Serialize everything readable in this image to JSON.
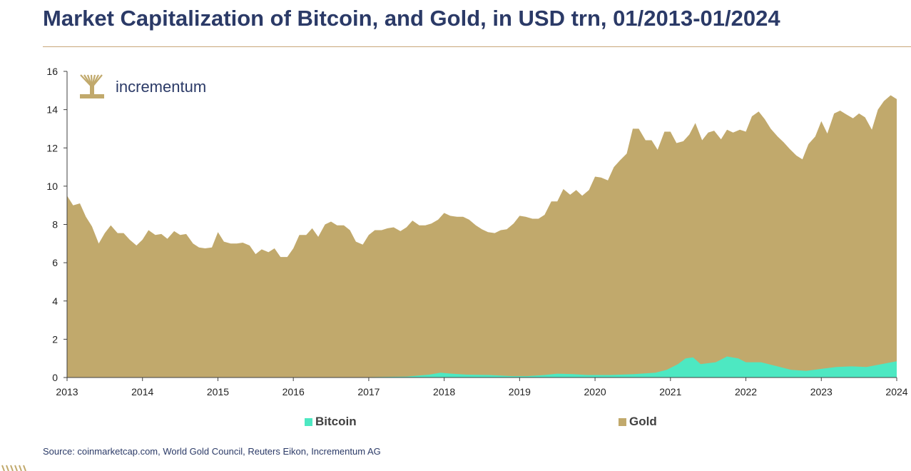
{
  "page": {
    "title": "Market Capitalization of Bitcoin, and Gold, in USD trn, 01/2013-01/2024",
    "brand": "incrementum",
    "source": "Source: coinmarketcap.com, World Gold Council, Reuters Eikon, Incrementum AG"
  },
  "colors": {
    "title": "#2b3a67",
    "rule": "#c8a77a",
    "gold": "#c1a96c",
    "bitcoin": "#4de8c2",
    "axis": "#404040",
    "brand_mark": "#c1a96c"
  },
  "icons": {
    "brand_logo": "incrementum-tree-logo-icon",
    "footer_logo": "incrementum-small-logo-icon"
  },
  "chart_data": {
    "type": "area",
    "stacked": true,
    "title": "Market Capitalization of Bitcoin, and Gold, in USD trn, 01/2013-01/2024",
    "xlabel": "",
    "ylabel": "",
    "x_start": 2013,
    "x_end": 2024,
    "x_ticks": [
      "2013",
      "2014",
      "2015",
      "2016",
      "2017",
      "2018",
      "2019",
      "2020",
      "2021",
      "2022",
      "2023",
      "2024"
    ],
    "ylim": [
      0,
      16
    ],
    "y_ticks": [
      "0",
      "2",
      "4",
      "6",
      "8",
      "10",
      "12",
      "14",
      "16"
    ],
    "grid": false,
    "legend_position": "bottom",
    "legend": [
      "Bitcoin",
      "Gold"
    ],
    "series": [
      {
        "name": "Bitcoin",
        "points": [
          [
            2013.0,
            0.0
          ],
          [
            2013.5,
            0.0
          ],
          [
            2014.0,
            0.01
          ],
          [
            2014.5,
            0.01
          ],
          [
            2015.0,
            0.0
          ],
          [
            2016.0,
            0.0
          ],
          [
            2016.5,
            0.01
          ],
          [
            2017.0,
            0.02
          ],
          [
            2017.5,
            0.05
          ],
          [
            2017.8,
            0.15
          ],
          [
            2017.95,
            0.25
          ],
          [
            2018.1,
            0.2
          ],
          [
            2018.3,
            0.15
          ],
          [
            2018.6,
            0.13
          ],
          [
            2018.9,
            0.07
          ],
          [
            2019.1,
            0.07
          ],
          [
            2019.3,
            0.12
          ],
          [
            2019.5,
            0.2
          ],
          [
            2019.7,
            0.18
          ],
          [
            2019.9,
            0.13
          ],
          [
            2020.2,
            0.13
          ],
          [
            2020.5,
            0.17
          ],
          [
            2020.8,
            0.25
          ],
          [
            2020.95,
            0.4
          ],
          [
            2021.1,
            0.7
          ],
          [
            2021.2,
            1.0
          ],
          [
            2021.3,
            1.05
          ],
          [
            2021.4,
            0.7
          ],
          [
            2021.6,
            0.8
          ],
          [
            2021.75,
            1.1
          ],
          [
            2021.9,
            1.0
          ],
          [
            2022.0,
            0.8
          ],
          [
            2022.2,
            0.8
          ],
          [
            2022.4,
            0.6
          ],
          [
            2022.6,
            0.4
          ],
          [
            2022.8,
            0.35
          ],
          [
            2023.0,
            0.45
          ],
          [
            2023.2,
            0.55
          ],
          [
            2023.4,
            0.58
          ],
          [
            2023.6,
            0.55
          ],
          [
            2023.8,
            0.7
          ],
          [
            2024.0,
            0.85
          ]
        ]
      },
      {
        "name": "Gold",
        "points": [
          [
            2013.0,
            9.5
          ],
          [
            2013.08,
            9.0
          ],
          [
            2013.17,
            9.1
          ],
          [
            2013.25,
            8.4
          ],
          [
            2013.33,
            7.9
          ],
          [
            2013.42,
            7.0
          ],
          [
            2013.5,
            7.55
          ],
          [
            2013.58,
            7.95
          ],
          [
            2013.67,
            7.55
          ],
          [
            2013.75,
            7.55
          ],
          [
            2013.83,
            7.2
          ],
          [
            2013.92,
            6.9
          ],
          [
            2014.0,
            7.2
          ],
          [
            2014.08,
            7.7
          ],
          [
            2014.17,
            7.45
          ],
          [
            2014.25,
            7.5
          ],
          [
            2014.33,
            7.25
          ],
          [
            2014.42,
            7.65
          ],
          [
            2014.5,
            7.45
          ],
          [
            2014.58,
            7.5
          ],
          [
            2014.67,
            7.0
          ],
          [
            2014.75,
            6.8
          ],
          [
            2014.83,
            6.75
          ],
          [
            2014.92,
            6.8
          ],
          [
            2015.0,
            7.6
          ],
          [
            2015.08,
            7.1
          ],
          [
            2015.17,
            7.0
          ],
          [
            2015.25,
            7.0
          ],
          [
            2015.33,
            7.05
          ],
          [
            2015.42,
            6.9
          ],
          [
            2015.5,
            6.45
          ],
          [
            2015.58,
            6.7
          ],
          [
            2015.67,
            6.55
          ],
          [
            2015.75,
            6.75
          ],
          [
            2015.83,
            6.3
          ],
          [
            2015.92,
            6.3
          ],
          [
            2016.0,
            6.75
          ],
          [
            2016.08,
            7.45
          ],
          [
            2016.17,
            7.45
          ],
          [
            2016.25,
            7.8
          ],
          [
            2016.33,
            7.35
          ],
          [
            2016.42,
            8.0
          ],
          [
            2016.5,
            8.15
          ],
          [
            2016.58,
            7.95
          ],
          [
            2016.67,
            7.95
          ],
          [
            2016.75,
            7.7
          ],
          [
            2016.83,
            7.1
          ],
          [
            2016.92,
            6.95
          ],
          [
            2017.0,
            7.45
          ],
          [
            2017.08,
            7.7
          ],
          [
            2017.17,
            7.7
          ],
          [
            2017.25,
            7.8
          ],
          [
            2017.33,
            7.85
          ],
          [
            2017.42,
            7.65
          ],
          [
            2017.5,
            7.85
          ],
          [
            2017.58,
            8.2
          ],
          [
            2017.67,
            7.95
          ],
          [
            2017.75,
            7.95
          ],
          [
            2017.83,
            8.05
          ],
          [
            2017.92,
            8.25
          ],
          [
            2018.0,
            8.6
          ],
          [
            2018.08,
            8.45
          ],
          [
            2018.17,
            8.4
          ],
          [
            2018.25,
            8.4
          ],
          [
            2018.33,
            8.25
          ],
          [
            2018.42,
            7.95
          ],
          [
            2018.5,
            7.75
          ],
          [
            2018.58,
            7.6
          ],
          [
            2018.67,
            7.55
          ],
          [
            2018.75,
            7.7
          ],
          [
            2018.83,
            7.75
          ],
          [
            2018.92,
            8.05
          ],
          [
            2019.0,
            8.45
          ],
          [
            2019.08,
            8.4
          ],
          [
            2019.17,
            8.3
          ],
          [
            2019.25,
            8.3
          ],
          [
            2019.33,
            8.5
          ],
          [
            2019.42,
            9.2
          ],
          [
            2019.5,
            9.2
          ],
          [
            2019.58,
            9.85
          ],
          [
            2019.67,
            9.55
          ],
          [
            2019.75,
            9.8
          ],
          [
            2019.83,
            9.5
          ],
          [
            2019.92,
            9.8
          ],
          [
            2020.0,
            10.5
          ],
          [
            2020.08,
            10.45
          ],
          [
            2020.17,
            10.3
          ],
          [
            2020.25,
            11.0
          ],
          [
            2020.33,
            11.35
          ],
          [
            2020.42,
            11.7
          ],
          [
            2020.5,
            13.0
          ],
          [
            2020.58,
            13.0
          ],
          [
            2020.67,
            12.4
          ],
          [
            2020.75,
            12.4
          ],
          [
            2020.83,
            11.9
          ],
          [
            2020.92,
            12.85
          ],
          [
            2021.0,
            12.85
          ],
          [
            2021.08,
            12.25
          ],
          [
            2021.17,
            12.35
          ],
          [
            2021.25,
            12.7
          ],
          [
            2021.33,
            13.3
          ],
          [
            2021.42,
            12.4
          ],
          [
            2021.5,
            12.8
          ],
          [
            2021.58,
            12.9
          ],
          [
            2021.67,
            12.45
          ],
          [
            2021.75,
            12.95
          ],
          [
            2021.83,
            12.8
          ],
          [
            2021.92,
            12.95
          ],
          [
            2022.0,
            12.85
          ],
          [
            2022.08,
            13.65
          ],
          [
            2022.17,
            13.9
          ],
          [
            2022.25,
            13.5
          ],
          [
            2022.33,
            13.0
          ],
          [
            2022.42,
            12.6
          ],
          [
            2022.5,
            12.3
          ],
          [
            2022.58,
            11.95
          ],
          [
            2022.67,
            11.6
          ],
          [
            2022.75,
            11.4
          ],
          [
            2022.83,
            12.2
          ],
          [
            2022.92,
            12.6
          ],
          [
            2023.0,
            13.4
          ],
          [
            2023.08,
            12.75
          ],
          [
            2023.17,
            13.8
          ],
          [
            2023.25,
            13.95
          ],
          [
            2023.33,
            13.75
          ],
          [
            2023.42,
            13.55
          ],
          [
            2023.5,
            13.8
          ],
          [
            2023.58,
            13.6
          ],
          [
            2023.67,
            12.95
          ],
          [
            2023.75,
            14.0
          ],
          [
            2023.83,
            14.45
          ],
          [
            2023.92,
            14.75
          ],
          [
            2024.0,
            14.55
          ]
        ]
      }
    ]
  }
}
